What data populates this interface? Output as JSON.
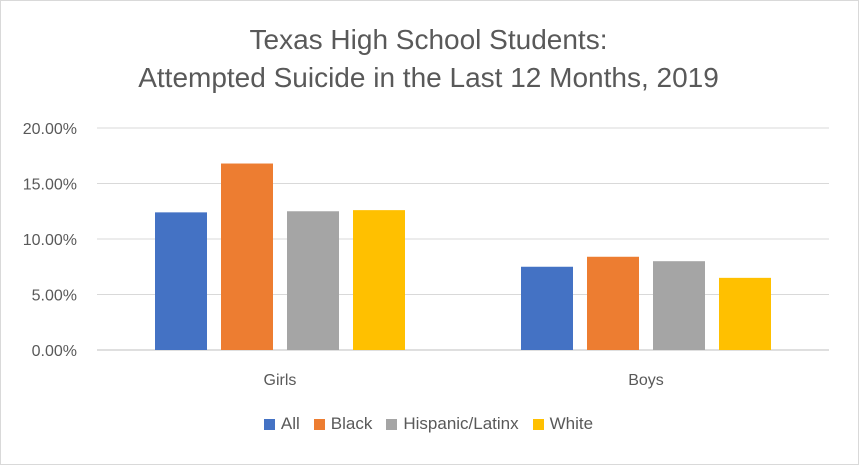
{
  "chart_data": {
    "type": "bar",
    "title_line1": "Texas High School Students:",
    "title_line2": "Attempted Suicide in the Last 12 Months, 2019",
    "categories": [
      "Girls",
      "Boys"
    ],
    "series": [
      {
        "name": "All",
        "color": "#4472c4",
        "values": [
          12.4,
          7.5
        ]
      },
      {
        "name": "Black",
        "color": "#ed7d31",
        "values": [
          16.8,
          8.4
        ]
      },
      {
        "name": "Hispanic/Latinx",
        "color": "#a5a5a5",
        "values": [
          12.5,
          8.0
        ]
      },
      {
        "name": "White",
        "color": "#ffc000",
        "values": [
          12.6,
          6.5
        ]
      }
    ],
    "ylim": [
      0,
      20
    ],
    "yticks": [
      "0.00%",
      "5.00%",
      "10.00%",
      "15.00%",
      "20.00%"
    ],
    "ytick_values": [
      0,
      5,
      10,
      15,
      20
    ],
    "legend": "bottom",
    "grid": true
  }
}
